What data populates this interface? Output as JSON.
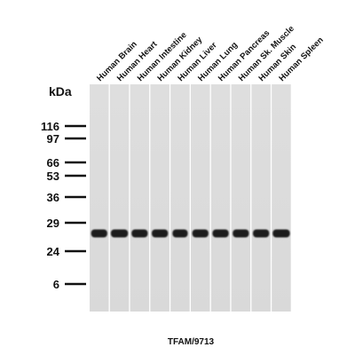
{
  "header": {
    "unit": "kDa"
  },
  "lanes": [
    "Human Brain",
    "Human Heart",
    "Human Intestine",
    "Human Kidney",
    "Human Liver",
    "Human Lung",
    "Human Pancreas",
    "Human Sk. Muscle",
    "Human Skin",
    "Human Spleen"
  ],
  "markers": [
    116,
    97,
    66,
    53,
    36,
    29,
    24,
    6
  ],
  "caption": "TFAM/9713"
}
